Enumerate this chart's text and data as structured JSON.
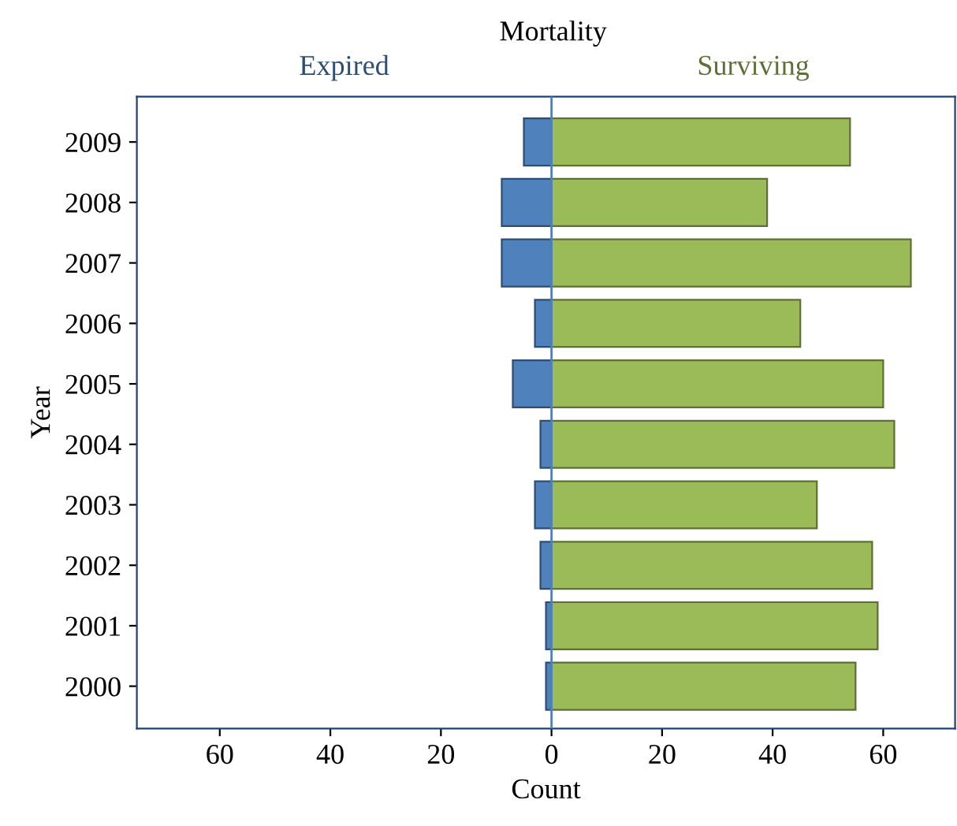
{
  "chart_data": {
    "type": "bar",
    "orientation": "horizontal",
    "stacked": true,
    "title": "Mortality",
    "xlabel": "Count",
    "ylabel": "Year",
    "categories": [
      "2009",
      "2008",
      "2007",
      "2006",
      "2005",
      "2004",
      "2003",
      "2002",
      "2001",
      "2000"
    ],
    "series": [
      {
        "name": "Expired",
        "color": "#4f81bd",
        "values": [
          -5,
          -9,
          -9,
          -3,
          -7,
          -2,
          -3,
          -2,
          -1,
          -1
        ]
      },
      {
        "name": "Surviving",
        "color": "#9bbb59",
        "values": [
          54,
          39,
          65,
          45,
          60,
          62,
          48,
          58,
          59,
          55
        ]
      }
    ],
    "xlim": [
      -75,
      73
    ],
    "xticks": [
      {
        "value": -60,
        "label": "60"
      },
      {
        "value": -40,
        "label": "40"
      },
      {
        "value": -20,
        "label": "20"
      },
      0,
      20,
      40,
      60
    ],
    "ref_lines": [
      {
        "axis": "x",
        "value": 0,
        "color": "#4f81bd"
      }
    ],
    "grid": false,
    "legend": false
  }
}
